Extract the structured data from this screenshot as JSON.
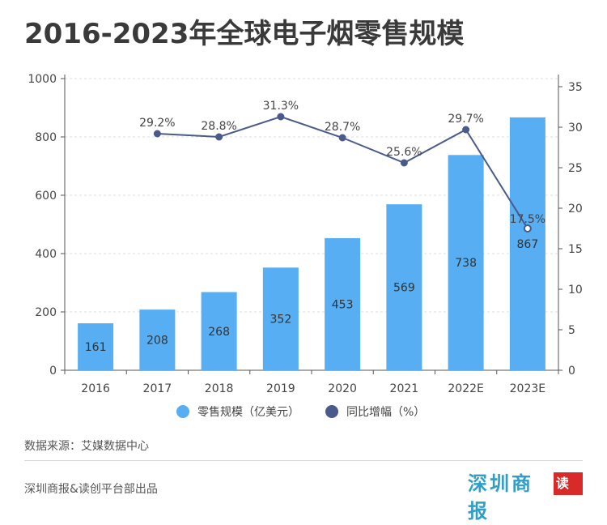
{
  "title": "2016-2023年全球电子烟零售规模",
  "source": "数据来源：艾媒数据中心",
  "footer": "深圳商报&读创平台部出品",
  "logo": {
    "text": "深圳商报",
    "badge": "读创"
  },
  "colors": {
    "bar": "#57aef2",
    "line": "#4a5a8a",
    "title": "#3a3a3a"
  },
  "chart_data": {
    "type": "bar+line",
    "categories": [
      "2016",
      "2017",
      "2018",
      "2019",
      "2020",
      "2021",
      "2022E",
      "2023E"
    ],
    "series": [
      {
        "name": "零售规模（亿美元）",
        "type": "bar",
        "axis": "left",
        "values": [
          161,
          208,
          268,
          352,
          453,
          569,
          738,
          867
        ],
        "labels": [
          "161",
          "208",
          "268",
          "352",
          "453",
          "569",
          "738",
          "867"
        ]
      },
      {
        "name": "同比增幅（%）",
        "type": "line",
        "axis": "right",
        "values": [
          null,
          29.2,
          28.8,
          31.3,
          28.7,
          25.6,
          29.7,
          17.5
        ],
        "labels": [
          "",
          "29.2%",
          "28.8%",
          "31.3%",
          "28.7%",
          "25.6%",
          "29.7%",
          "17.5%"
        ]
      }
    ],
    "y_left": {
      "min": 0,
      "max": 1000,
      "ticks": [
        0,
        200,
        400,
        600,
        800,
        1000
      ]
    },
    "y_right": {
      "min": 0,
      "max": 36,
      "ticks": [
        0,
        5,
        10,
        15,
        20,
        25,
        30,
        35
      ]
    },
    "grid": "horizontal dashed",
    "legend_position": "bottom"
  }
}
